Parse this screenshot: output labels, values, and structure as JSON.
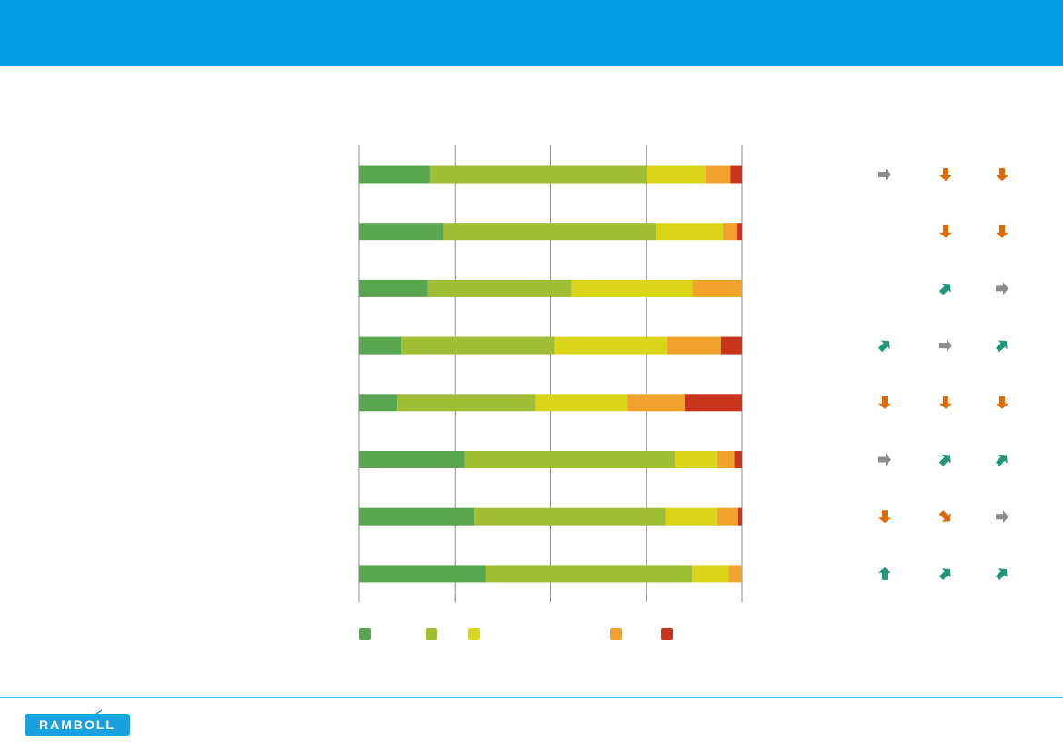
{
  "brand": {
    "logo_text": "RAMBOLL"
  },
  "colors": {
    "header": "#009fe3",
    "very_good": "#5aa650",
    "good": "#a0bd36",
    "neutral": "#dad41b",
    "poor": "#f0a22c",
    "very_poor": "#c8341c",
    "arrow_up": "#22967b",
    "arrow_down": "#e06a00",
    "arrow_flat": "#8c8c8c"
  },
  "chart_data": {
    "type": "bar",
    "orientation": "horizontal",
    "stacked": true,
    "xlim": [
      0,
      100
    ],
    "grid": true,
    "legend_position": "bottom",
    "categories": [
      "",
      "",
      "",
      "",
      "",
      "",
      "",
      ""
    ],
    "series": [
      {
        "color": "#5aa650",
        "values": [
          18.5,
          22,
          18,
          11,
          10,
          27.5,
          30,
          33
        ]
      },
      {
        "color": "#a0bd36",
        "values": [
          56.5,
          55.5,
          37.5,
          40,
          36,
          55,
          50,
          54
        ]
      },
      {
        "color": "#dad41b",
        "values": [
          15.5,
          17.5,
          31.5,
          29.5,
          24,
          11,
          13.5,
          9.5
        ]
      },
      {
        "color": "#f0a22c",
        "values": [
          6.5,
          3.5,
          13,
          14,
          15,
          4.5,
          5.5,
          3.5
        ]
      },
      {
        "color": "#c8341c",
        "values": [
          3,
          1.5,
          0,
          5.5,
          15,
          2,
          1,
          0
        ]
      }
    ]
  },
  "trends": [
    [
      "flat",
      "down",
      "down"
    ],
    [
      "",
      "down",
      "down"
    ],
    [
      "",
      "up-right",
      "flat"
    ],
    [
      "up-right",
      "flat",
      "up-right"
    ],
    [
      "down",
      "down",
      "down"
    ],
    [
      "flat",
      "up-right",
      "up-right"
    ],
    [
      "down",
      "down-right",
      "flat"
    ],
    [
      "up",
      "up-right",
      "up-right"
    ]
  ]
}
